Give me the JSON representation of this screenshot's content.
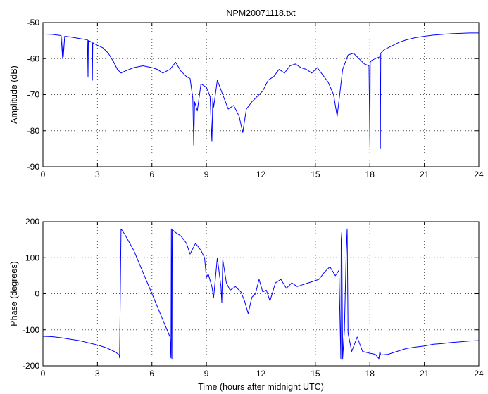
{
  "chart_data": [
    {
      "type": "line",
      "title": "NPM20071118.txt",
      "xlabel": "",
      "ylabel": "Amplitude (dB)",
      "xlim": [
        0,
        24
      ],
      "ylim": [
        -90,
        -50
      ],
      "x_ticks": [
        0,
        3,
        6,
        9,
        12,
        15,
        18,
        21,
        24
      ],
      "y_ticks": [
        -50,
        -60,
        -70,
        -80,
        -90
      ],
      "grid": true,
      "series": [
        {
          "color": "#0000ff",
          "x": [
            0,
            0.5,
            1.0,
            1.08,
            1.1,
            1.12,
            1.2,
            1.5,
            2.0,
            2.45,
            2.48,
            2.5,
            2.55,
            2.7,
            2.72,
            2.74,
            2.8,
            3.0,
            3.3,
            3.6,
            3.9,
            4.1,
            4.3,
            4.5,
            5.0,
            5.5,
            6.0,
            6.3,
            6.6,
            7.0,
            7.3,
            7.6,
            7.9,
            8.1,
            8.25,
            8.3,
            8.35,
            8.5,
            8.7,
            9.0,
            9.2,
            9.3,
            9.35,
            9.4,
            9.6,
            9.9,
            10.2,
            10.5,
            10.8,
            11.0,
            11.2,
            11.5,
            11.8,
            12.1,
            12.4,
            12.7,
            13.0,
            13.3,
            13.6,
            13.9,
            14.2,
            14.5,
            14.8,
            15.1,
            15.4,
            15.7,
            16.0,
            16.2,
            16.5,
            16.8,
            17.1,
            17.4,
            17.7,
            17.95,
            18.0,
            18.02,
            18.1,
            18.3,
            18.55,
            18.58,
            18.6,
            18.8,
            19.2,
            19.6,
            20.0,
            20.5,
            21.0,
            21.5,
            22.0,
            22.5,
            23.0,
            23.5,
            24.0
          ],
          "y": [
            -53.2,
            -53.3,
            -53.6,
            -60.0,
            -54.0,
            -59.5,
            -53.8,
            -54.0,
            -54.4,
            -54.8,
            -65.0,
            -55.0,
            -55.1,
            -55.5,
            -66.0,
            -55.6,
            -55.8,
            -56.3,
            -57.0,
            -58.5,
            -61.0,
            -63.0,
            -64.0,
            -63.5,
            -62.5,
            -62.0,
            -62.5,
            -63.0,
            -64.0,
            -63.0,
            -61.0,
            -63.5,
            -65.0,
            -65.5,
            -71.0,
            -84.0,
            -72.0,
            -74.5,
            -67.0,
            -68.0,
            -70.5,
            -83.0,
            -71.0,
            -73.5,
            -66.0,
            -70.0,
            -74.0,
            -73.0,
            -76.0,
            -80.5,
            -74.0,
            -72.0,
            -70.5,
            -69.0,
            -66.0,
            -65.0,
            -63.0,
            -64.0,
            -62.0,
            -61.5,
            -62.5,
            -63.0,
            -64.0,
            -62.5,
            -64.5,
            -66.5,
            -70.0,
            -76.0,
            -63.0,
            -59.0,
            -58.5,
            -60.0,
            -61.5,
            -62.0,
            -84.0,
            -61.0,
            -60.5,
            -60.0,
            -59.5,
            -85.0,
            -58.5,
            -57.5,
            -56.5,
            -55.5,
            -54.8,
            -54.2,
            -53.8,
            -53.5,
            -53.3,
            -53.1,
            -53.0,
            -52.9,
            -52.9
          ]
        }
      ]
    },
    {
      "type": "line",
      "title": "",
      "xlabel": "Time (hours after midnight UTC)",
      "ylabel": "Phase (degrees)",
      "xlim": [
        0,
        24
      ],
      "ylim": [
        -200,
        200
      ],
      "x_ticks": [
        0,
        3,
        6,
        9,
        12,
        15,
        18,
        21,
        24
      ],
      "y_ticks": [
        200,
        100,
        0,
        -100,
        -200
      ],
      "grid": true,
      "series": [
        {
          "color": "#0000ff",
          "x": [
            0,
            0.5,
            1.0,
            1.5,
            2.0,
            2.5,
            3.0,
            3.5,
            4.0,
            4.2,
            4.22,
            4.3,
            4.5,
            5.0,
            5.5,
            6.0,
            6.5,
            7.0,
            7.05,
            7.07,
            7.1,
            7.12,
            7.3,
            7.6,
            7.9,
            8.1,
            8.4,
            8.7,
            8.9,
            9.0,
            9.1,
            9.3,
            9.4,
            9.5,
            9.6,
            9.8,
            9.85,
            9.9,
            10.1,
            10.3,
            10.6,
            10.9,
            11.1,
            11.3,
            11.5,
            11.7,
            11.9,
            12.1,
            12.3,
            12.5,
            12.8,
            13.1,
            13.4,
            13.7,
            14.0,
            14.3,
            14.6,
            14.9,
            15.2,
            15.5,
            15.8,
            16.1,
            16.3,
            16.4,
            16.42,
            16.45,
            16.5,
            16.6,
            16.7,
            16.75,
            16.8,
            17.0,
            17.3,
            17.6,
            18.0,
            18.3,
            18.5,
            18.55,
            18.6,
            19.0,
            19.5,
            20.0,
            20.5,
            21.0,
            21.5,
            22.0,
            22.5,
            23.0,
            23.5,
            24.0
          ],
          "y": [
            -118,
            -119,
            -122,
            -126,
            -130,
            -136,
            -142,
            -150,
            -162,
            -170,
            -178,
            180,
            165,
            120,
            60,
            0,
            -60,
            -120,
            -178,
            180,
            -180,
            178,
            170,
            160,
            140,
            110,
            140,
            120,
            100,
            45,
            55,
            20,
            -10,
            45,
            100,
            20,
            -25,
            95,
            30,
            10,
            20,
            5,
            -20,
            -55,
            -10,
            0,
            40,
            5,
            10,
            -20,
            30,
            40,
            15,
            30,
            20,
            25,
            30,
            35,
            40,
            60,
            75,
            50,
            65,
            -180,
            150,
            170,
            -180,
            -100,
            120,
            180,
            -110,
            -160,
            -120,
            -160,
            -165,
            -168,
            -180,
            -160,
            -170,
            -168,
            -160,
            -152,
            -148,
            -145,
            -140,
            -138,
            -135,
            -133,
            -131,
            -130
          ]
        }
      ]
    }
  ]
}
